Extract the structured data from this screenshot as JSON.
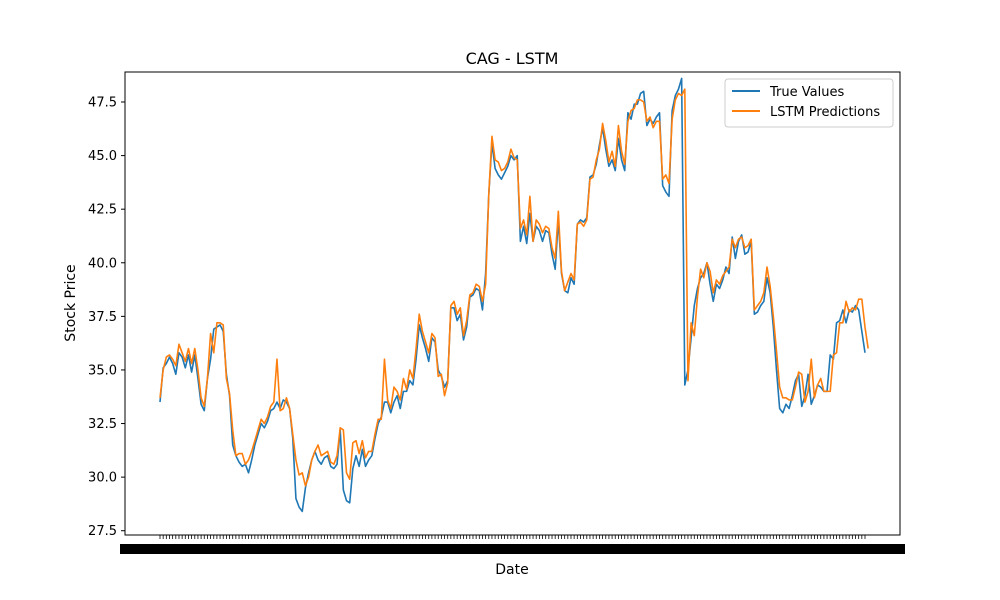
{
  "chart_data": {
    "type": "line",
    "title": "CAG - LSTM",
    "xlabel": "Date",
    "ylabel": "Stock Price",
    "ylim": [
      27.3,
      48.9
    ],
    "yticks": [
      27.5,
      30.0,
      32.5,
      35.0,
      37.5,
      40.0,
      42.5,
      45.0,
      47.5
    ],
    "ytick_labels": [
      "27.5",
      "30.0",
      "32.5",
      "35.0",
      "37.5",
      "40.0",
      "42.5",
      "45.0",
      "47.5"
    ],
    "grid": false,
    "legend_position": "top-right",
    "series": [
      {
        "name": "True Values",
        "color": "#1f77b4",
        "values": [
          33.5,
          35.1,
          35.3,
          35.6,
          35.3,
          34.8,
          35.8,
          35.6,
          35.1,
          35.7,
          34.9,
          35.7,
          34.6,
          33.4,
          33.1,
          34.6,
          35.5,
          36.9,
          37.0,
          37.1,
          36.8,
          34.8,
          33.8,
          31.5,
          31.0,
          30.7,
          30.5,
          30.6,
          30.2,
          30.8,
          31.5,
          32.0,
          32.5,
          32.3,
          32.6,
          33.1,
          33.2,
          33.5,
          33.2,
          33.6,
          33.5,
          33.2,
          31.8,
          29.0,
          28.6,
          28.4,
          29.5,
          30.2,
          30.8,
          31.2,
          30.8,
          30.6,
          30.9,
          31.0,
          30.5,
          30.4,
          30.6,
          32.2,
          29.4,
          28.9,
          28.8,
          30.4,
          31.0,
          30.5,
          31.3,
          30.5,
          30.8,
          31.0,
          31.8,
          32.5,
          32.8,
          33.5,
          33.5,
          33.0,
          33.5,
          33.8,
          33.2,
          34.0,
          34.0,
          34.5,
          34.3,
          35.5,
          37.1,
          36.5,
          36.0,
          35.4,
          36.5,
          36.3,
          35.0,
          34.7,
          34.2,
          34.5,
          37.9,
          37.9,
          37.3,
          37.6,
          36.4,
          37.0,
          38.4,
          38.5,
          38.8,
          38.7,
          37.8,
          39.5,
          43.2,
          45.6,
          44.4,
          44.1,
          43.9,
          44.2,
          44.5,
          45.0,
          44.8,
          45.0,
          41.0,
          41.7,
          40.9,
          42.3,
          41.0,
          41.7,
          41.5,
          41.0,
          41.5,
          41.4,
          40.4,
          39.7,
          42.0,
          39.5,
          38.7,
          38.6,
          39.3,
          39.0,
          41.8,
          42.0,
          41.9,
          42.1,
          44.0,
          44.1,
          44.6,
          45.5,
          46.3,
          45.3,
          44.5,
          44.8,
          44.3,
          45.8,
          44.8,
          44.3,
          47.0,
          46.7,
          47.4,
          47.4,
          47.9,
          48.0,
          46.4,
          46.7,
          46.5,
          46.8,
          47.0,
          43.6,
          43.3,
          43.1,
          47.1,
          47.8,
          48.1,
          48.6,
          34.3,
          35.0,
          36.5,
          38.0,
          38.8,
          39.3,
          39.5,
          40.0,
          39.0,
          38.2,
          39.0,
          38.8,
          39.2,
          39.8,
          39.5,
          41.2,
          40.2,
          41.0,
          41.3,
          40.4,
          40.5,
          41.0,
          37.6,
          37.7,
          38.0,
          38.2,
          39.3,
          38.6,
          37.0,
          35.0,
          33.2,
          33.0,
          33.4,
          33.2,
          33.8,
          34.5,
          34.8,
          33.3,
          33.8,
          34.8,
          33.4,
          33.8,
          34.3,
          34.2,
          34.0,
          34.0,
          35.7,
          35.5,
          37.2,
          37.3,
          37.8,
          37.2,
          37.8,
          37.7,
          38.0,
          37.8,
          36.8,
          35.8
        ]
      },
      {
        "name": "LSTM Predictions",
        "color": "#ff7f0e",
        "values": [
          33.7,
          35.0,
          35.6,
          35.7,
          35.5,
          35.2,
          36.2,
          35.8,
          35.4,
          36.0,
          35.3,
          36.0,
          35.0,
          33.7,
          33.3,
          34.6,
          36.7,
          35.8,
          37.2,
          37.2,
          37.1,
          34.6,
          33.9,
          32.2,
          31.0,
          31.1,
          31.1,
          30.6,
          30.8,
          31.2,
          31.7,
          32.2,
          32.7,
          32.5,
          32.8,
          33.3,
          33.5,
          35.5,
          33.1,
          33.2,
          33.7,
          33.2,
          32.0,
          30.8,
          30.1,
          30.2,
          29.6,
          30.0,
          30.8,
          31.2,
          31.5,
          31.0,
          31.1,
          31.2,
          30.7,
          30.6,
          31.0,
          32.3,
          32.2,
          30.2,
          29.9,
          31.6,
          31.7,
          31.1,
          31.7,
          30.9,
          31.2,
          31.2,
          32.0,
          32.7,
          32.7,
          35.5,
          33.6,
          33.2,
          34.2,
          34.0,
          33.6,
          34.6,
          34.1,
          35.0,
          34.6,
          36.0,
          37.6,
          36.8,
          36.3,
          35.8,
          36.7,
          36.5,
          34.7,
          34.8,
          33.8,
          34.4,
          38.0,
          38.2,
          37.6,
          37.9,
          36.6,
          37.3,
          38.5,
          38.6,
          39.0,
          38.9,
          38.2,
          39.0,
          43.2,
          45.9,
          44.8,
          44.7,
          44.3,
          44.4,
          44.7,
          45.3,
          44.9,
          44.8,
          41.6,
          42.0,
          41.3,
          43.1,
          41.0,
          42.0,
          41.8,
          41.4,
          41.7,
          41.6,
          40.7,
          40.2,
          42.4,
          39.6,
          38.7,
          39.1,
          39.5,
          39.2,
          41.8,
          41.9,
          41.7,
          42.0,
          43.9,
          44.0,
          44.8,
          45.3,
          46.5,
          45.7,
          44.7,
          45.2,
          44.5,
          46.4,
          45.2,
          44.6,
          46.6,
          47.1,
          47.2,
          47.6,
          47.6,
          47.5,
          46.6,
          46.8,
          46.3,
          46.6,
          46.6,
          43.9,
          44.1,
          43.7,
          46.7,
          47.6,
          47.9,
          47.8,
          48.1,
          34.5,
          37.2,
          36.6,
          38.4,
          39.7,
          39.3,
          40.0,
          39.6,
          38.6,
          39.2,
          39.0,
          39.4,
          39.6,
          39.8,
          41.1,
          40.7,
          41.1,
          41.2,
          40.7,
          40.8,
          41.1,
          37.8,
          38.0,
          38.2,
          38.6,
          39.8,
          38.9,
          37.5,
          35.9,
          34.2,
          33.7,
          33.7,
          33.6,
          33.6,
          34.2,
          34.9,
          34.8,
          33.5,
          34.0,
          35.5,
          33.7,
          34.3,
          34.6,
          34.0,
          34.0,
          34.0,
          35.7,
          35.8,
          37.2,
          37.2,
          38.2,
          37.7,
          37.9,
          37.8,
          38.3,
          38.3,
          37.0,
          36.0
        ]
      }
    ]
  }
}
